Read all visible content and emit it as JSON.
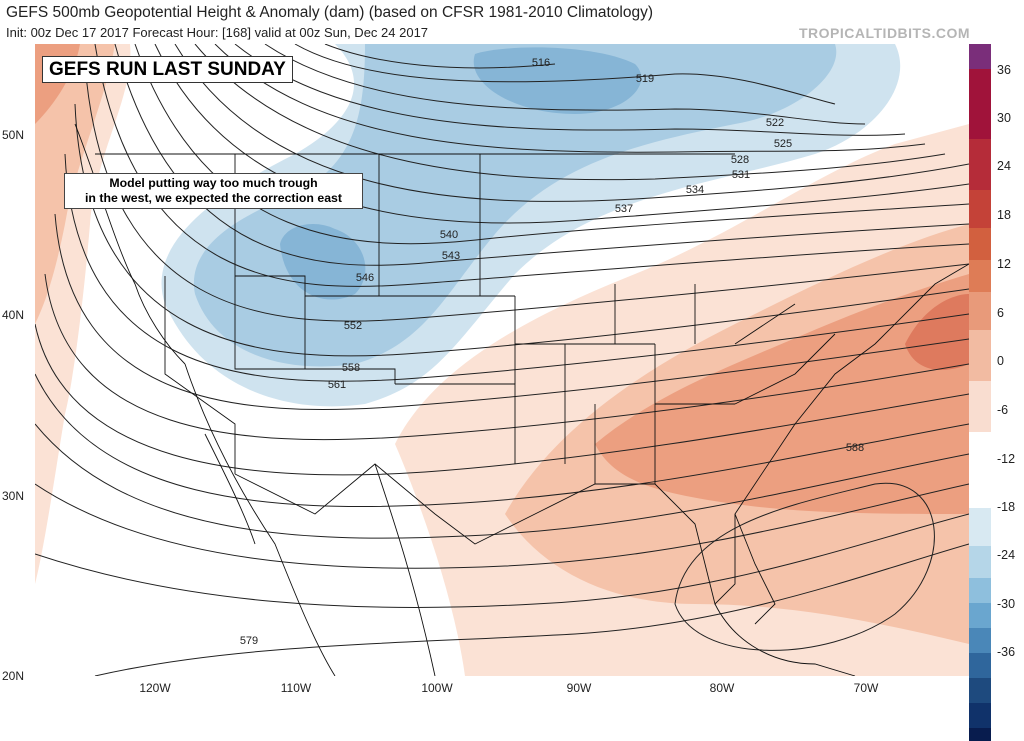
{
  "header": {
    "title": "GEFS 500mb Geopotential Height & Anomaly (dam) (based on CFSR 1981-2010 Climatology)",
    "subtitle": "Init: 00z Dec 17 2017   Forecast Hour: [168]   valid at 00z Sun, Dec 24 2017",
    "source": "TROPICALTIDBITS.COM"
  },
  "annotations": {
    "banner": "GEFS RUN LAST SUNDAY",
    "note_line1": "Model putting way too much trough",
    "note_line2": "in the west, we expected the correction east"
  },
  "axes": {
    "lat_labels": [
      "50N",
      "40N",
      "30N",
      "20N"
    ],
    "lon_labels": [
      "120W",
      "110W",
      "100W",
      "90W",
      "80W",
      "70W"
    ]
  },
  "contour_labels": [
    "516",
    "519",
    "522",
    "525",
    "528",
    "531",
    "534",
    "537",
    "540",
    "543",
    "546",
    "552",
    "558",
    "561",
    "579",
    "588"
  ],
  "colorbar": {
    "labels": [
      "36",
      "30",
      "24",
      "18",
      "12",
      "6",
      "0",
      "-6",
      "-12",
      "-18",
      "-24",
      "-30",
      "-36"
    ],
    "colors": [
      "#7a2e7a",
      "#a0133a",
      "#b52c39",
      "#c44238",
      "#d2603f",
      "#de7c56",
      "#e89a7a",
      "#f2bba2",
      "#f9ddd0",
      "#ffffff",
      "#ffffff",
      "#d8e9f2",
      "#b5d6e8",
      "#8ebfdd",
      "#6aa6cf",
      "#4a87b8",
      "#2f669c",
      "#1e4a7e",
      "#10326a",
      "#081c4e"
    ],
    "color_fracs": [
      0.04,
      0.11,
      0.08,
      0.06,
      0.0,
      0.0,
      0.06,
      0.08,
      0.08,
      0.06,
      0.06,
      0.06,
      0.05,
      0.04,
      0.04,
      0.04,
      0.04,
      0.04,
      0.04,
      0.02
    ]
  },
  "map_colors": {
    "positive_light": "#fbe2d5",
    "positive_mid": "#f5c3aa",
    "positive_strong": "#ec9f80",
    "positive_deep": "#de7a5e",
    "negative_light": "#cfe3ef",
    "negative_mid": "#a9cce3",
    "negative_strong": "#86b5d6"
  }
}
